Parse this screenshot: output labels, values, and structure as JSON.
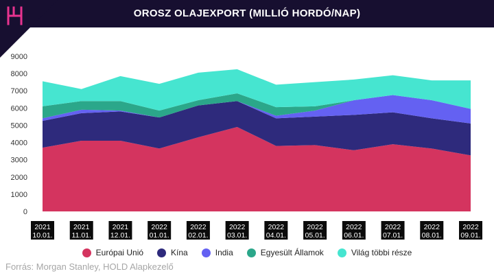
{
  "header": {
    "title": "OROSZ OLAJEXPORT (MILLIÓ HORDÓ/NAP)"
  },
  "brand": {
    "logo": "hold-logo",
    "color": "#e8338f"
  },
  "chart_data": {
    "type": "area",
    "stacked": true,
    "ylim": [
      0,
      9000
    ],
    "yticks": [
      "0",
      "1000",
      "2000",
      "3000",
      "4000",
      "5000",
      "6000",
      "7000",
      "8000",
      "9000"
    ],
    "categories": [
      [
        "2021",
        "10.01."
      ],
      [
        "2021",
        "11.01."
      ],
      [
        "2021",
        "12.01."
      ],
      [
        "2022",
        "01.01."
      ],
      [
        "2022",
        "02.01."
      ],
      [
        "2022",
        "03.01."
      ],
      [
        "2022",
        "04.01."
      ],
      [
        "2022",
        "05.01."
      ],
      [
        "2022",
        "06.01."
      ],
      [
        "2022",
        "07.01."
      ],
      [
        "2022",
        "08.01."
      ],
      [
        "2022",
        "09.01."
      ]
    ],
    "series": [
      {
        "name": "Európai Unió",
        "color": "#d4345f",
        "values": [
          3700,
          4100,
          4100,
          3650,
          4300,
          4900,
          3800,
          3850,
          3550,
          3900,
          3650,
          3250
        ]
      },
      {
        "name": "Kína",
        "color": "#2e2a7c",
        "values": [
          1550,
          1600,
          1700,
          1800,
          1850,
          1500,
          1600,
          1650,
          2050,
          1850,
          1750,
          1850
        ]
      },
      {
        "name": "India",
        "color": "#6461f2",
        "values": [
          150,
          200,
          50,
          0,
          0,
          0,
          150,
          350,
          850,
          1000,
          1050,
          850
        ]
      },
      {
        "name": "Egyesült Államok",
        "color": "#2ba78a",
        "values": [
          700,
          500,
          550,
          400,
          300,
          450,
          500,
          250,
          0,
          0,
          0,
          0
        ]
      },
      {
        "name": "Világ többi része",
        "color": "#46e5d0",
        "values": [
          1450,
          700,
          1450,
          1550,
          1600,
          1400,
          1300,
          1400,
          1200,
          1150,
          1150,
          1650
        ]
      }
    ],
    "legend_position": "bottom",
    "grid": false
  },
  "footer": {
    "source": "Forrás: Morgan Stanley, HOLD Alapkezelő"
  }
}
